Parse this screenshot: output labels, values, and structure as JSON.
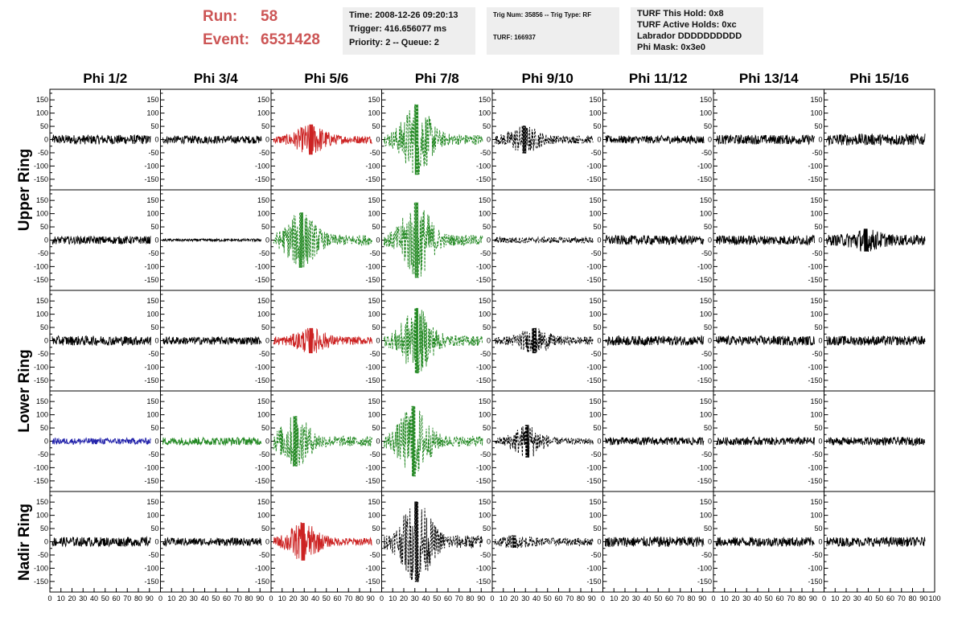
{
  "header": {
    "run_label": "Run:",
    "run_value": "58",
    "event_label": "Event:",
    "event_value": "6531428",
    "run_color": "#cc5555"
  },
  "info_time": {
    "time": "Time: 2008-12-26 09:20:13",
    "trigger": "Trigger: 416.656077 ms",
    "priority": "Priority: 2 -- Queue: 2"
  },
  "info_trig": {
    "trig": "Trig Num: 35856 -- Trig Type: RF",
    "turf": "TURF: 166937"
  },
  "info_turf": {
    "hold": "TURF This Hold: 0x8",
    "active": "TURF Active Holds: 0xc",
    "labrador": "Labrador DDDDDDDDDD",
    "phimask": "Phi Mask: 0x3e0"
  },
  "columns": [
    "Phi 1/2",
    "Phi 3/4",
    "Phi 5/6",
    "Phi 7/8",
    "Phi 9/10",
    "Phi 11/12",
    "Phi 13/14",
    "Phi 15/16"
  ],
  "row_groups": [
    {
      "label": "Upper Ring",
      "rows": [
        0,
        1
      ]
    },
    {
      "label": "Lower Ring",
      "rows": [
        2,
        3
      ]
    },
    {
      "label": "Nadir Ring",
      "rows": [
        4
      ]
    }
  ],
  "chart_data": {
    "type": "line",
    "description_of_grid": "5 rows x 8 columns of waveform panels",
    "ylim": [
      -190,
      190
    ],
    "xlim": [
      0,
      100
    ],
    "yticks": [
      -150,
      -100,
      -50,
      0,
      50,
      100,
      150
    ],
    "xticks": [
      0,
      10,
      20,
      30,
      40,
      50,
      60,
      70,
      80,
      90,
      100
    ],
    "xtick_labels": [
      "0",
      "10",
      "20",
      "30",
      "40",
      "50",
      "60",
      "70",
      "80",
      "90",
      "100"
    ],
    "colors": {
      "normal": "#000000",
      "red": "#cc2222",
      "green": "#228822",
      "blue": "#2222aa"
    },
    "panels": [
      [
        {
          "color": "normal",
          "dash": false,
          "amp": 18,
          "burst": 0,
          "center": 0
        },
        {
          "color": "normal",
          "dash": false,
          "amp": 15,
          "burst": 0,
          "center": 0
        },
        {
          "color": "red",
          "dash": false,
          "amp": 15,
          "burst": 60,
          "center": 38
        },
        {
          "color": "green",
          "dash": true,
          "amp": 20,
          "burst": 140,
          "center": 33
        },
        {
          "color": "normal",
          "dash": true,
          "amp": 15,
          "burst": 55,
          "center": 30
        },
        {
          "color": "normal",
          "dash": false,
          "amp": 15,
          "burst": 0,
          "center": 0
        },
        {
          "color": "normal",
          "dash": false,
          "amp": 18,
          "burst": 0,
          "center": 0
        },
        {
          "color": "normal",
          "dash": false,
          "amp": 22,
          "burst": 0,
          "center": 0
        }
      ],
      [
        {
          "color": "normal",
          "dash": false,
          "amp": 15,
          "burst": 0,
          "center": 0
        },
        {
          "color": "normal",
          "dash": false,
          "amp": 5,
          "burst": 0,
          "center": 0
        },
        {
          "color": "green",
          "dash": true,
          "amp": 20,
          "burst": 110,
          "center": 28
        },
        {
          "color": "green",
          "dash": true,
          "amp": 20,
          "burst": 150,
          "center": 33
        },
        {
          "color": "normal",
          "dash": true,
          "amp": 12,
          "burst": 0,
          "center": 0
        },
        {
          "color": "normal",
          "dash": false,
          "amp": 18,
          "burst": 0,
          "center": 0
        },
        {
          "color": "normal",
          "dash": false,
          "amp": 18,
          "burst": 0,
          "center": 0
        },
        {
          "color": "normal",
          "dash": false,
          "amp": 20,
          "burst": 45,
          "center": 40
        }
      ],
      [
        {
          "color": "normal",
          "dash": false,
          "amp": 18,
          "burst": 0,
          "center": 0
        },
        {
          "color": "normal",
          "dash": false,
          "amp": 15,
          "burst": 0,
          "center": 0
        },
        {
          "color": "red",
          "dash": false,
          "amp": 15,
          "burst": 50,
          "center": 38
        },
        {
          "color": "green",
          "dash": true,
          "amp": 20,
          "burst": 130,
          "center": 33
        },
        {
          "color": "normal",
          "dash": true,
          "amp": 15,
          "burst": 50,
          "center": 40
        },
        {
          "color": "normal",
          "dash": false,
          "amp": 18,
          "burst": 0,
          "center": 0
        },
        {
          "color": "normal",
          "dash": false,
          "amp": 18,
          "burst": 0,
          "center": 0
        },
        {
          "color": "normal",
          "dash": false,
          "amp": 18,
          "burst": 0,
          "center": 0
        }
      ],
      [
        {
          "color": "blue",
          "dash": false,
          "amp": 12,
          "burst": 0,
          "center": 0
        },
        {
          "color": "green",
          "dash": false,
          "amp": 15,
          "burst": 0,
          "center": 0
        },
        {
          "color": "green",
          "dash": true,
          "amp": 20,
          "burst": 100,
          "center": 22
        },
        {
          "color": "green",
          "dash": true,
          "amp": 20,
          "burst": 140,
          "center": 30
        },
        {
          "color": "normal",
          "dash": true,
          "amp": 12,
          "burst": 65,
          "center": 33
        },
        {
          "color": "normal",
          "dash": false,
          "amp": 15,
          "burst": 0,
          "center": 0
        },
        {
          "color": "normal",
          "dash": false,
          "amp": 15,
          "burst": 0,
          "center": 0
        },
        {
          "color": "normal",
          "dash": false,
          "amp": 15,
          "burst": 0,
          "center": 0
        }
      ],
      [
        {
          "color": "normal",
          "dash": false,
          "amp": 18,
          "burst": 0,
          "center": 0
        },
        {
          "color": "normal",
          "dash": false,
          "amp": 15,
          "burst": 0,
          "center": 0
        },
        {
          "color": "red",
          "dash": false,
          "amp": 15,
          "burst": 75,
          "center": 30
        },
        {
          "color": "normal",
          "dash": true,
          "amp": 25,
          "burst": 160,
          "center": 33
        },
        {
          "color": "normal",
          "dash": true,
          "amp": 15,
          "burst": 25,
          "center": 20
        },
        {
          "color": "normal",
          "dash": false,
          "amp": 20,
          "burst": 0,
          "center": 0
        },
        {
          "color": "normal",
          "dash": false,
          "amp": 18,
          "burst": 0,
          "center": 0
        },
        {
          "color": "normal",
          "dash": false,
          "amp": 18,
          "burst": 0,
          "center": 0
        }
      ]
    ]
  }
}
